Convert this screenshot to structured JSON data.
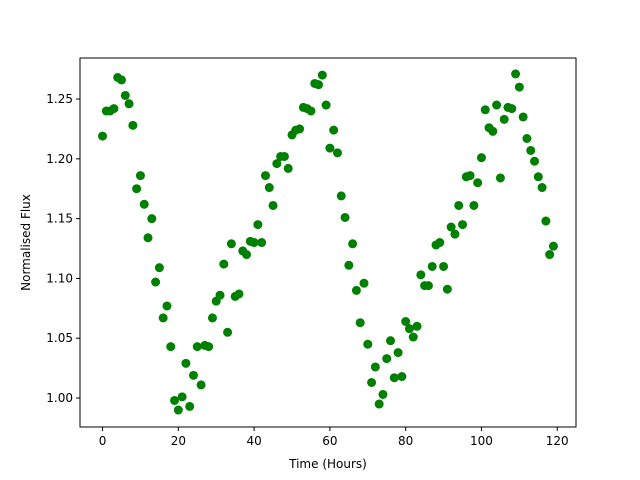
{
  "chart_data": {
    "type": "scatter",
    "xlabel": "Time (Hours)",
    "ylabel": "Normalised Flux",
    "color": "#008000",
    "x": [
      0,
      1,
      2,
      3,
      4,
      5,
      6,
      7,
      8,
      9,
      10,
      11,
      12,
      13,
      14,
      15,
      16,
      17,
      18,
      19,
      20,
      21,
      22,
      23,
      24,
      25,
      26,
      27,
      28,
      29,
      30,
      31,
      32,
      33,
      34,
      35,
      36,
      37,
      38,
      39,
      40,
      41,
      42,
      43,
      44,
      45,
      46,
      47,
      48,
      49,
      50,
      51,
      52,
      53,
      54,
      55,
      56,
      57,
      58,
      59,
      60,
      61,
      62,
      63,
      64,
      65,
      66,
      67,
      68,
      69,
      70,
      71,
      72,
      73,
      74,
      75,
      76,
      77,
      78,
      79,
      80,
      81,
      82,
      83,
      84,
      85,
      86,
      87,
      88,
      89,
      90,
      91,
      92,
      93,
      94,
      95,
      96,
      97,
      98,
      99,
      100,
      101,
      102,
      103,
      104,
      105,
      106,
      107,
      108,
      109,
      110,
      111,
      112,
      113,
      114,
      115,
      116,
      117,
      118,
      119
    ],
    "values": [
      1.219,
      1.24,
      1.24,
      1.242,
      1.268,
      1.266,
      1.253,
      1.246,
      1.228,
      1.175,
      1.186,
      1.162,
      1.134,
      1.15,
      1.097,
      1.109,
      1.067,
      1.077,
      1.043,
      0.998,
      0.99,
      1.001,
      1.029,
      0.993,
      1.019,
      1.043,
      1.011,
      1.044,
      1.043,
      1.067,
      1.081,
      1.086,
      1.112,
      1.055,
      1.129,
      1.085,
      1.087,
      1.123,
      1.12,
      1.131,
      1.13,
      1.145,
      1.13,
      1.186,
      1.176,
      1.161,
      1.196,
      1.202,
      1.202,
      1.192,
      1.22,
      1.224,
      1.225,
      1.243,
      1.242,
      1.24,
      1.263,
      1.262,
      1.27,
      1.245,
      1.209,
      1.224,
      1.205,
      1.169,
      1.151,
      1.111,
      1.129,
      1.09,
      1.063,
      1.096,
      1.045,
      1.013,
      1.026,
      0.995,
      1.003,
      1.033,
      1.048,
      1.017,
      1.038,
      1.018,
      1.064,
      1.058,
      1.051,
      1.06,
      1.103,
      1.094,
      1.094,
      1.11,
      1.128,
      1.13,
      1.11,
      1.091,
      1.143,
      1.137,
      1.161,
      1.145,
      1.185,
      1.186,
      1.161,
      1.18,
      1.201,
      1.241,
      1.226,
      1.223,
      1.245,
      1.184,
      1.233,
      1.243,
      1.242,
      1.271,
      1.26,
      1.235,
      1.217,
      1.207,
      1.198,
      1.185,
      1.176,
      1.148,
      1.12,
      1.127
    ],
    "xlim": [
      -5.95,
      124.95
    ],
    "ylim": [
      0.9758,
      1.2843
    ],
    "xticks": [
      0,
      20,
      40,
      60,
      80,
      100,
      120
    ],
    "yticks": [
      {
        "value": 1.0,
        "label": "1.00"
      },
      1.05,
      {
        "value": 1.1,
        "label": "1.10"
      },
      1.15,
      {
        "value": 1.2,
        "label": "1.20"
      },
      1.25
    ]
  }
}
